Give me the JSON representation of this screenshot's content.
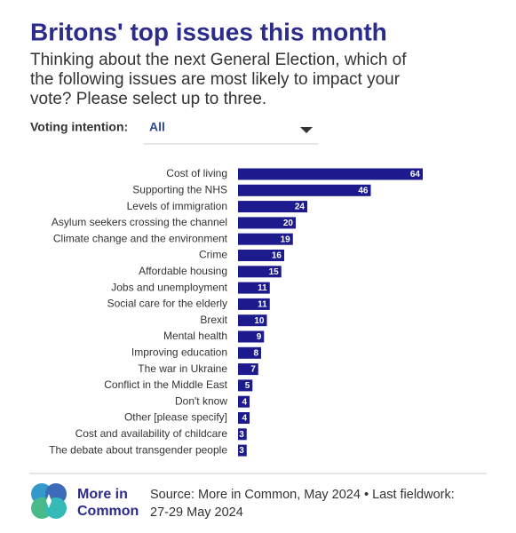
{
  "chart_data": {
    "type": "bar",
    "title": "Britons' top issues this month",
    "subtitle": [
      "Thinking about the next General Election, which of",
      "the following issues are most likely to impact your",
      "vote? Please select up to three."
    ],
    "categories": [
      "Cost of living",
      "Supporting the NHS",
      "Levels of immigration",
      "Asylum seekers crossing the channel",
      "Climate change and the environment",
      "Crime",
      "Affordable housing",
      "Jobs and unemployment",
      "Social care for the elderly",
      "Brexit",
      "Mental health",
      "Improving education",
      "The war in Ukraine",
      "Conflict in the Middle East",
      "Don't know",
      "Other [please specify]",
      "Cost and availability of childcare",
      "The debate about transgender people"
    ],
    "values": [
      64,
      46,
      24,
      20,
      19,
      16,
      15,
      11,
      11,
      10,
      9,
      8,
      7,
      5,
      4,
      4,
      3,
      3
    ],
    "color": "#1c1a8c"
  },
  "filter": {
    "label": "Voting intention:",
    "value": "All"
  },
  "footer": {
    "brand": [
      "More in",
      "Common"
    ],
    "source": [
      "Source: More in Common, May 2024 • Last fieldwork:",
      "27-29 May 2024"
    ]
  }
}
